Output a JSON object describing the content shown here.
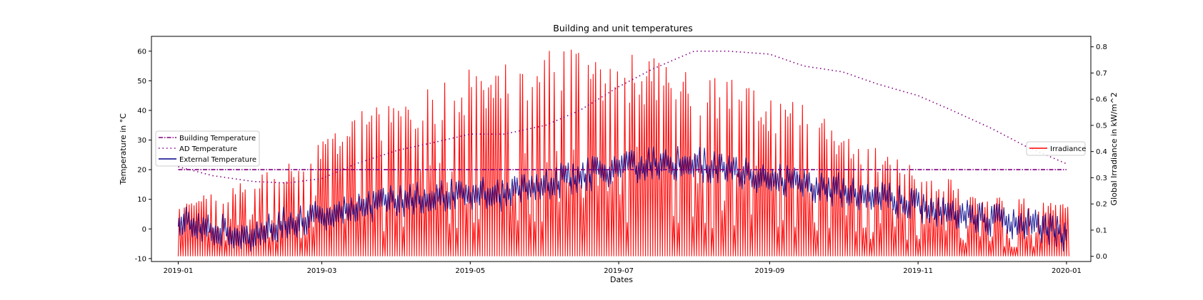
{
  "chart_data": {
    "type": "line",
    "title": "Building and unit temperatures",
    "xlabel": "Dates",
    "ylabel_left": "Temperature in °C",
    "ylabel_right": "Global Irradiance in kW/m^2",
    "x_range": [
      "2018-12-21",
      "2020-01-11"
    ],
    "ylim_left": [
      -11,
      65
    ],
    "ylim_right": [
      -0.02,
      0.84
    ],
    "x_ticks": [
      "2019-01",
      "2019-03",
      "2019-05",
      "2019-07",
      "2019-09",
      "2019-11",
      "2020-01"
    ],
    "x_tick_dates": [
      "2019-01-01",
      "2019-03-01",
      "2019-05-01",
      "2019-07-01",
      "2019-09-01",
      "2019-11-01",
      "2020-01-01"
    ],
    "y_ticks_left": [
      -10,
      0,
      10,
      20,
      30,
      40,
      50,
      60
    ],
    "y_ticks_right": [
      0.0,
      0.1,
      0.2,
      0.3,
      0.4,
      0.5,
      0.6,
      0.7,
      0.8
    ],
    "grid": false,
    "legend_left": {
      "placement": "center-left",
      "entries": [
        "Building Temperature",
        "AD Temperature",
        "External Temperature"
      ]
    },
    "legend_right": {
      "placement": "center-right",
      "entries": [
        "Irradiance"
      ]
    },
    "series": [
      {
        "name": "Building Temperature",
        "axis": "left",
        "color": "#800080",
        "style": "dash-dot",
        "dates": [
          "2019-01-01",
          "2019-02-01",
          "2019-03-01",
          "2019-04-01",
          "2019-05-01",
          "2019-06-01",
          "2019-07-01",
          "2019-08-01",
          "2019-09-01",
          "2019-10-01",
          "2019-11-01",
          "2019-12-01",
          "2020-01-01"
        ],
        "values": [
          20,
          20,
          20,
          20,
          20,
          20,
          20,
          20,
          20,
          20,
          20,
          20,
          20
        ]
      },
      {
        "name": "AD Temperature",
        "axis": "left",
        "color": "#800080",
        "style": "dotted",
        "dates": [
          "2019-01-01",
          "2019-01-15",
          "2019-02-01",
          "2019-02-15",
          "2019-03-01",
          "2019-03-15",
          "2019-04-01",
          "2019-04-15",
          "2019-05-01",
          "2019-05-15",
          "2019-06-01",
          "2019-06-15",
          "2019-07-01",
          "2019-07-15",
          "2019-08-01",
          "2019-08-15",
          "2019-09-01",
          "2019-09-15",
          "2019-10-01",
          "2019-10-15",
          "2019-11-01",
          "2019-11-15",
          "2019-12-01",
          "2019-12-15",
          "2020-01-01"
        ],
        "values": [
          21,
          18,
          16,
          15.5,
          17,
          22,
          26.5,
          29,
          32,
          32,
          35,
          40,
          48,
          54,
          60,
          60,
          59,
          55,
          53,
          49,
          45,
          40,
          34,
          28,
          22
        ]
      },
      {
        "name": "External Temperature",
        "axis": "left",
        "color": "#00008b",
        "style": "solid",
        "dates": [
          "2019-01-01",
          "2019-01-15",
          "2019-02-01",
          "2019-02-15",
          "2019-03-01",
          "2019-03-15",
          "2019-04-01",
          "2019-04-15",
          "2019-05-01",
          "2019-05-15",
          "2019-06-01",
          "2019-06-15",
          "2019-07-01",
          "2019-07-15",
          "2019-08-01",
          "2019-08-15",
          "2019-09-01",
          "2019-09-15",
          "2019-10-01",
          "2019-10-15",
          "2019-11-01",
          "2019-11-15",
          "2019-12-01",
          "2019-12-15",
          "2020-01-01"
        ],
        "values": [
          2,
          0,
          -2,
          2,
          5,
          7,
          10,
          10,
          12,
          11,
          15,
          18,
          20,
          22,
          22,
          20,
          17,
          15,
          13,
          11,
          8,
          5,
          3,
          2,
          -2
        ]
      },
      {
        "name": "Irradiance",
        "axis": "right",
        "color": "#ff0000",
        "style": "solid",
        "resolution": "daily peak",
        "dates": [
          "2019-01-01",
          "2019-01-15",
          "2019-02-01",
          "2019-02-15",
          "2019-03-01",
          "2019-03-15",
          "2019-04-01",
          "2019-04-15",
          "2019-05-01",
          "2019-05-15",
          "2019-06-01",
          "2019-06-15",
          "2019-07-01",
          "2019-07-15",
          "2019-08-01",
          "2019-08-15",
          "2019-09-01",
          "2019-09-15",
          "2019-10-01",
          "2019-10-15",
          "2019-11-01",
          "2019-11-15",
          "2019-12-01",
          "2019-12-15",
          "2020-01-01"
        ],
        "values": [
          0.2,
          0.25,
          0.3,
          0.38,
          0.45,
          0.55,
          0.6,
          0.67,
          0.72,
          0.75,
          0.8,
          0.8,
          0.78,
          0.77,
          0.72,
          0.68,
          0.62,
          0.58,
          0.5,
          0.42,
          0.35,
          0.29,
          0.24,
          0.22,
          0.2
        ]
      }
    ]
  }
}
